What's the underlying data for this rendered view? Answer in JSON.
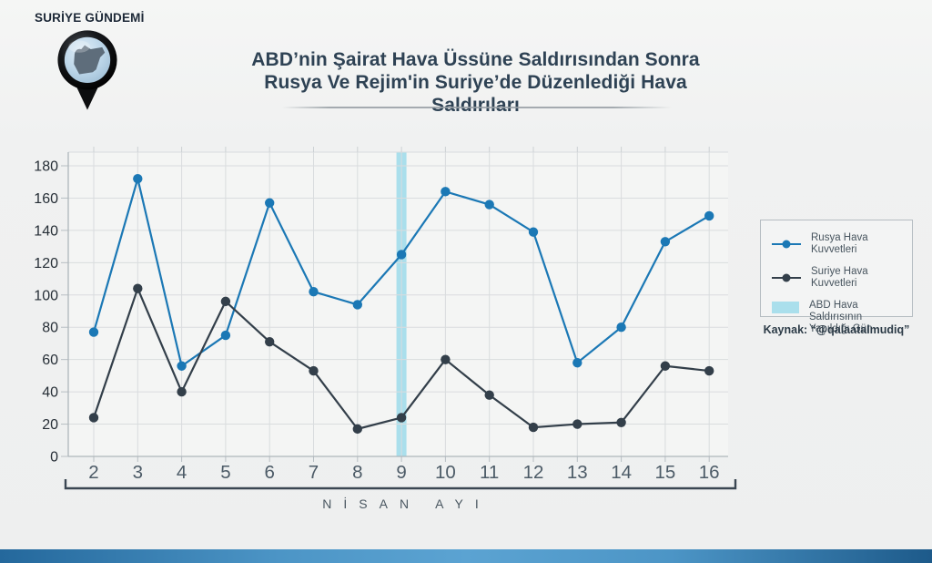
{
  "brand": {
    "name": "SURİYE GÜNDEMİ"
  },
  "header": {
    "title_line1": "ABD’nin Şairat Hava Üssüne Saldırısından Sonra",
    "title_line2": "Rusya Ve Rejim'in Suriye’de Düzenlediği Hava Saldırıları"
  },
  "legend": {
    "russia_label": "Rusya Hava Kuvvetleri",
    "syria_label": "Suriye Hava Kuvvetleri",
    "strike_day_line1": "ABD Hava Saldırısının",
    "strike_day_line2": "Yapıldığı Gün"
  },
  "source": {
    "text": "Kaynak: “@qalaatalmudiq”"
  },
  "colors": {
    "russia_blue": "#1b78b5",
    "syria_dark": "#333f4a",
    "strike_band": "#aadfec",
    "grid": "#d9dcde",
    "axis": "#aeb6bb",
    "tick": "#b7bec3",
    "bracket": "#3a4652",
    "y_label": "#262e36",
    "x_label": "#4c5b67"
  },
  "chart_data": {
    "type": "line",
    "x": [
      2,
      3,
      4,
      5,
      6,
      7,
      8,
      9,
      10,
      11,
      12,
      13,
      14,
      15,
      16
    ],
    "series": [
      {
        "name": "Rusya Hava Kuvvetleri",
        "color": "#1b78b5",
        "values": [
          77,
          172,
          56,
          75,
          157,
          102,
          94,
          125,
          164,
          156,
          139,
          58,
          80,
          133,
          149
        ]
      },
      {
        "name": "Suriye Hava Kuvvetleri",
        "color": "#333f4a",
        "values": [
          24,
          104,
          40,
          96,
          71,
          53,
          17,
          24,
          60,
          38,
          18,
          20,
          21,
          56,
          53
        ]
      }
    ],
    "highlight_x": 9,
    "highlight_label": "ABD Hava Saldırısının Yapıldığı Gün",
    "xlabel": "NİSAN AYI",
    "ylabel": "",
    "ylim": [
      0,
      180
    ],
    "ytick_step": 20,
    "grid": true,
    "legend_position": "right",
    "title": "ABD’nin Şairat Hava Üssüne Saldırısından Sonra Rusya Ve Rejim'in Suriye’de Düzenlediği Hava Saldırıları"
  }
}
